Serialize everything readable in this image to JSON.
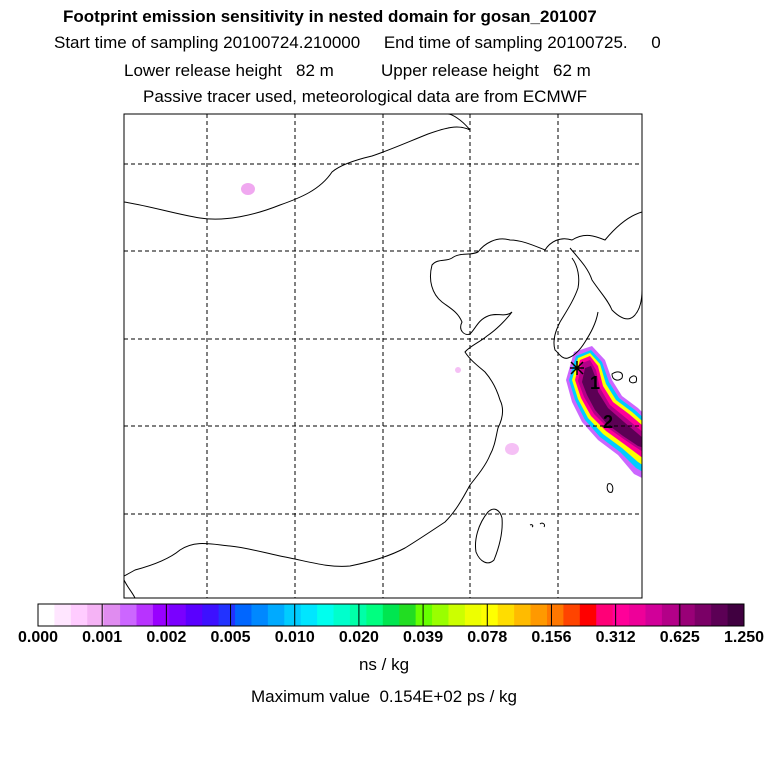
{
  "header": {
    "title": "Footprint emission sensitivity in nested domain for gosan_201007",
    "sampling_line": "Start time of sampling 20100724.210000     End time of sampling 20100725.     0",
    "release_line": "Lower release height   82 m          Upper release height   62 m",
    "tracer_line": "Passive tracer used, meteorological data are from ECMWF"
  },
  "map": {
    "markers": [
      "1",
      "2"
    ]
  },
  "colorbar": {
    "tick_labels": [
      "0.000",
      "0.001",
      "0.002",
      "0.005",
      "0.010",
      "0.020",
      "0.039",
      "0.078",
      "0.156",
      "0.312",
      "0.625",
      "1.250"
    ],
    "colors": [
      "#ffffff",
      "#ffe6ff",
      "#ffccff",
      "#f5b3f5",
      "#e08cf0",
      "#cc66ff",
      "#b833ff",
      "#9900ff",
      "#7a00ff",
      "#5a00ff",
      "#3d10ff",
      "#2233ff",
      "#0066ff",
      "#0088ff",
      "#00aaff",
      "#00ccff",
      "#00e6ff",
      "#00ffee",
      "#00ffcc",
      "#00ffa8",
      "#00ff80",
      "#00e650",
      "#22dd22",
      "#66ff00",
      "#99ff00",
      "#ccff00",
      "#eeff00",
      "#ffff00",
      "#ffdd00",
      "#ffbb00",
      "#ff9900",
      "#ff7700",
      "#ff4400",
      "#ff0000",
      "#ff0077",
      "#ff0099",
      "#ee0099",
      "#d10099",
      "#b30088",
      "#990077",
      "#7a0066",
      "#5c0055",
      "#400040"
    ],
    "units": "ns / kg"
  },
  "footer": {
    "max_value": "Maximum value  0.154E+02 ps / kg"
  }
}
